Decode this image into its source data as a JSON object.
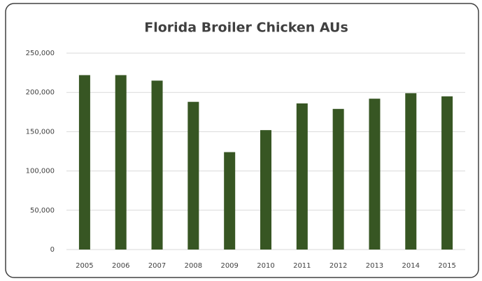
{
  "chart_data": {
    "type": "bar",
    "title": "Florida Broiler Chicken AUs",
    "categories": [
      "2005",
      "2006",
      "2007",
      "2008",
      "2009",
      "2010",
      "2011",
      "2012",
      "2013",
      "2014",
      "2015"
    ],
    "values": [
      222000,
      222000,
      215000,
      188000,
      124000,
      152000,
      186000,
      179000,
      192000,
      199000,
      195000
    ],
    "color": "#375623",
    "ylim": [
      0,
      250000
    ],
    "yticks": [
      0,
      {
        "value": 50000,
        "label": "50,000"
      },
      {
        "value": 100000,
        "label": "100,000"
      },
      {
        "value": 150000,
        "label": "150,000"
      },
      {
        "value": 200000,
        "label": "200,000"
      },
      {
        "value": 250000,
        "label": "250,000"
      }
    ],
    "grid": true
  }
}
